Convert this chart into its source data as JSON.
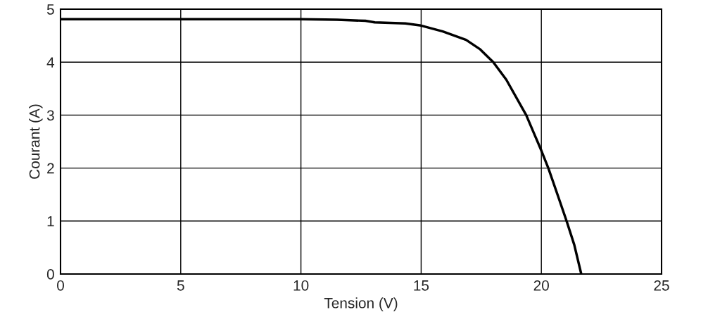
{
  "chart_data": {
    "type": "line",
    "xlabel": "Tension (V)",
    "ylabel": "Courant (A)",
    "x": [
      0,
      5,
      10,
      11.5,
      12.68,
      13.07,
      14.34,
      15.0,
      15.9,
      16.87,
      17.46,
      18.0,
      18.54,
      19.37,
      20.0,
      20.29,
      20.68,
      21.05,
      21.37,
      21.66
    ],
    "series": [
      {
        "color": "#000000",
        "values": [
          4.81,
          4.81,
          4.81,
          4.8,
          4.78,
          4.75,
          4.73,
          4.69,
          4.58,
          4.42,
          4.24,
          4.0,
          3.67,
          3.0,
          2.33,
          2.0,
          1.49,
          1.0,
          0.55,
          0
        ]
      }
    ],
    "xlim": [
      0,
      25
    ],
    "ylim": [
      0,
      5
    ],
    "xticks": [
      0,
      5,
      10,
      15,
      20,
      25
    ],
    "yticks": [
      0,
      1,
      2,
      3,
      4,
      5
    ],
    "grid": true,
    "marker": "none",
    "line_style": "solid"
  }
}
